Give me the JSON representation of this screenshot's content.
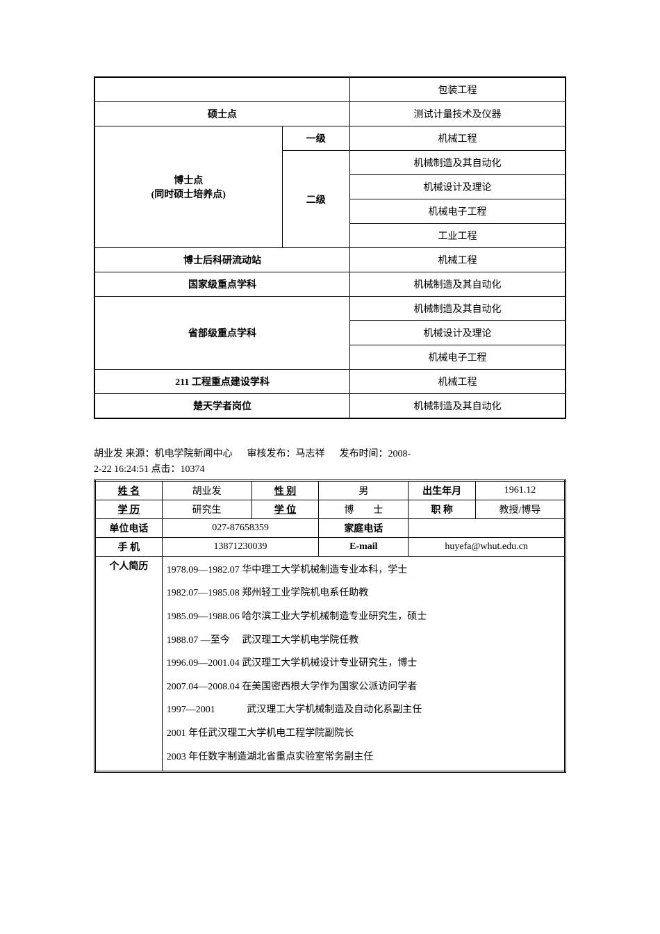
{
  "table1": {
    "rows": [
      {
        "label": "",
        "label_bold": false,
        "value": "包装工程",
        "rowspan": 1,
        "has_sublevel": false
      },
      {
        "label": "硕士点",
        "label_bold": true,
        "value": "测试计量技术及仪器",
        "rowspan": 1,
        "has_sublevel": false
      }
    ],
    "phd_section": {
      "label": "博士点\n(同时硕士培养点)",
      "level1_label": "一级",
      "level1_value": "机械工程",
      "level2_label": "二级",
      "level2_values": [
        "机械制造及其自动化",
        "机械设计及理论",
        "机械电子工程",
        "工业工程"
      ]
    },
    "simple_rows": [
      {
        "label": "博士后科研流动站",
        "value": "机械工程"
      },
      {
        "label": "国家级重点学科",
        "value": "机械制造及其自动化"
      }
    ],
    "provincial": {
      "label": "省部级重点学科",
      "values": [
        "机械制造及其自动化",
        "机械设计及理论",
        "机械电子工程"
      ]
    },
    "bottom_rows": [
      {
        "label": "211 工程重点建设学科",
        "value": "机械工程"
      },
      {
        "label": "楚天学者岗位",
        "value": "机械制造及其自动化"
      }
    ]
  },
  "meta": {
    "line1_prefix": "胡业发  来源：机电学院新闻中心",
    "line1_mid": "审核发布：马志祥",
    "line1_suffix": "发布时间：2008-",
    "line2": "2-22 16:24:51     点击：10374"
  },
  "table2": {
    "headers": {
      "name_label": "姓 名",
      "name_value": "胡业发",
      "gender_label": "性 别",
      "gender_value": "男",
      "birth_label": "出生年月",
      "birth_value": "1961.12",
      "edu_label": "学 历",
      "edu_value": "研究生",
      "degree_label": "学 位",
      "degree_value": "博　　士",
      "title_label": "职 称",
      "title_value": "教授/博导",
      "unit_phone_label": "单位电话",
      "unit_phone_value": "027-87658359",
      "home_phone_label": "家庭电话",
      "home_phone_value": "",
      "mobile_label": "手 机",
      "mobile_value": "13871230039",
      "email_label": "E-mail",
      "email_value": "huyefa@whut.edu.cn",
      "resume_label": "个人简历"
    },
    "resume_lines": [
      "1978.09—1982.07 华中理工大学机械制造专业本科，学士",
      "1982.07—1985.08 郑州轻工业学院机电系任助教",
      "1985.09—1988.06 哈尔滨工业大学机械制造专业研究生，硕士",
      "1988.07 —至今　 武汉理工大学机电学院任教",
      "1996.09—2001.04 武汉理工大学机械设计专业研究生，博士",
      "2007.04—2008.04 在美国密西根大学作为国家公派访问学者",
      "1997—2001　　　 武汉理工大学机械制造及自动化系副主任",
      "2001 年任武汉理工大学机电工程学院副院长",
      "2003 年任数字制造湖北省重点实验室常务副主任"
    ]
  }
}
